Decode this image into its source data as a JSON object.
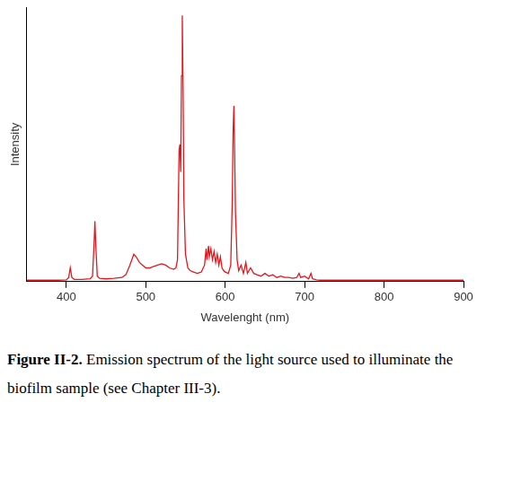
{
  "chart_data": {
    "type": "line",
    "x_label": "Wavelenght (nm)",
    "y_label": "Intensity",
    "caption_label": "Figure II-2.",
    "caption": "Emission spectrum of the light source used to illuminate the biofilm sample (see Chapter III-3).",
    "color": "#e8141b",
    "x": [
      350,
      360,
      370,
      380,
      390,
      400,
      403,
      405,
      407,
      410,
      420,
      430,
      433,
      435,
      436,
      437,
      439,
      442,
      450,
      460,
      470,
      475,
      480,
      485,
      488,
      492,
      496,
      500,
      505,
      510,
      515,
      520,
      525,
      530,
      535,
      538,
      540,
      542,
      543,
      544,
      545,
      546,
      547,
      548,
      550,
      553,
      556,
      560,
      565,
      570,
      574,
      576,
      577,
      579,
      580,
      582,
      584,
      586,
      588,
      590,
      592,
      594,
      596,
      598,
      600,
      604,
      607,
      609,
      610,
      611,
      612,
      613,
      615,
      617,
      620,
      623,
      626,
      628,
      632,
      636,
      640,
      645,
      650,
      655,
      660,
      665,
      670,
      675,
      680,
      685,
      690,
      693,
      695,
      700,
      705,
      708,
      710,
      715,
      720,
      740,
      760,
      780,
      800,
      820,
      840,
      860,
      880,
      900
    ],
    "values": [
      0.5,
      0.5,
      0.5,
      0.5,
      0.5,
      0.6,
      1.5,
      5,
      1.5,
      0.8,
      0.8,
      1,
      2,
      14,
      22,
      14,
      2,
      1.2,
      1,
      1.2,
      1.5,
      2.5,
      6,
      10,
      9,
      7,
      6,
      5,
      5,
      5.5,
      6,
      6.5,
      6,
      5,
      4.5,
      5,
      8,
      48,
      50,
      40,
      75,
      97,
      70,
      30,
      10,
      5,
      4,
      3.5,
      3,
      3.5,
      6,
      12,
      8,
      13,
      9,
      12,
      8,
      11,
      7,
      10,
      6,
      9,
      5,
      4,
      3.5,
      3,
      6,
      30,
      55,
      64,
      45,
      25,
      8,
      4,
      6,
      3,
      7,
      3,
      5,
      3,
      2.5,
      2,
      3,
      2,
      2.5,
      1.5,
      2,
      1.5,
      1.5,
      1.2,
      1.5,
      3,
      1.5,
      2,
      1,
      3,
      1,
      0.6,
      0.5,
      0.5,
      0.5,
      0.5,
      0.5,
      0.5,
      0.5,
      0.5,
      0.5,
      0.5
    ],
    "xlim": [
      350,
      900
    ],
    "xticks": [
      400,
      500,
      600,
      700,
      800,
      900
    ],
    "ylim": [
      0,
      100
    ],
    "tick_labels": "x",
    "grid": false
  }
}
